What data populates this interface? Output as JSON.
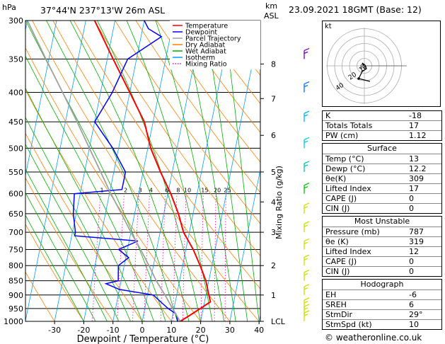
{
  "header": {
    "location": "37°44'N  237°13'W  26m  ASL",
    "datetime": "23.09.2021  18GMT  (Base: 12)",
    "pressure_unit": "hPa",
    "height_unit_km": "km",
    "height_unit_asl": "ASL"
  },
  "legend": [
    {
      "name": "Temperature",
      "color": "#ff0000",
      "style": "solid"
    },
    {
      "name": "Dewpoint",
      "color": "#0000ff",
      "style": "solid"
    },
    {
      "name": "Parcel Trajectory",
      "color": "#a0a0a0",
      "style": "solid"
    },
    {
      "name": "Dry Adiabat",
      "color": "#ff8000",
      "style": "solid"
    },
    {
      "name": "Wet Adiabat",
      "color": "#00b000",
      "style": "solid"
    },
    {
      "name": "Isotherm",
      "color": "#00a0ff",
      "style": "solid"
    },
    {
      "name": "Mixing Ratio",
      "color": "#ff00c0",
      "style": "dotted"
    }
  ],
  "chart_data": {
    "type": "line",
    "xlabel": "Dewpoint / Temperature (°C)",
    "ylabel_right": "Mixing Ratio (g/kg)",
    "xlim": [
      -35,
      40
    ],
    "ylim": [
      1000,
      300
    ],
    "y_scale": "log",
    "pressure_ticks": [
      1000,
      950,
      900,
      850,
      800,
      750,
      700,
      650,
      600,
      550,
      500,
      450,
      400,
      350,
      300
    ],
    "temp_ticks": [
      -30,
      -20,
      -10,
      0,
      10,
      20,
      30,
      40
    ],
    "km_ticks": [
      {
        "km": "LCL",
        "p": 1000
      },
      {
        "km": "1",
        "p": 900
      },
      {
        "km": "2",
        "p": 800
      },
      {
        "km": "3",
        "p": 700
      },
      {
        "km": "4",
        "p": 620
      },
      {
        "km": "5",
        "p": 550
      },
      {
        "km": "6",
        "p": 475
      },
      {
        "km": "7",
        "p": 410
      },
      {
        "km": "8",
        "p": 357
      }
    ],
    "mixing_ratio_labels": [
      "1",
      "2",
      "3",
      "4",
      "6",
      "8",
      "10",
      "15",
      "20",
      "25"
    ],
    "mixing_ratio_values": [
      1,
      2,
      3,
      4,
      6,
      8,
      10,
      15,
      20,
      25
    ],
    "series": [
      {
        "name": "Temperature",
        "color": "#ff0000",
        "points": [
          [
            1000,
            13
          ],
          [
            975,
            16
          ],
          [
            950,
            19
          ],
          [
            925,
            22
          ],
          [
            900,
            21
          ],
          [
            850,
            19
          ],
          [
            800,
            16
          ],
          [
            750,
            12.5
          ],
          [
            700,
            8
          ],
          [
            650,
            5
          ],
          [
            600,
            1
          ],
          [
            550,
            -4
          ],
          [
            500,
            -9
          ],
          [
            450,
            -13
          ],
          [
            400,
            -20
          ],
          [
            350,
            -28
          ],
          [
            300,
            -37
          ]
        ]
      },
      {
        "name": "Dewpoint",
        "color": "#0000ff",
        "points": [
          [
            1000,
            12.2
          ],
          [
            970,
            11
          ],
          [
            950,
            8
          ],
          [
            925,
            5
          ],
          [
            900,
            2
          ],
          [
            880,
            -10
          ],
          [
            860,
            -15
          ],
          [
            850,
            -11
          ],
          [
            800,
            -12
          ],
          [
            775,
            -9
          ],
          [
            750,
            -13
          ],
          [
            725,
            -7
          ],
          [
            710,
            -29
          ],
          [
            700,
            -29
          ],
          [
            650,
            -31
          ],
          [
            600,
            -32
          ],
          [
            590,
            -16
          ],
          [
            550,
            -16
          ],
          [
            500,
            -22
          ],
          [
            450,
            -30
          ],
          [
            400,
            -26
          ],
          [
            350,
            -23
          ],
          [
            320,
            -13
          ],
          [
            310,
            -18
          ],
          [
            300,
            -20
          ]
        ]
      },
      {
        "name": "Parcel Trajectory",
        "color": "#a0a0a0",
        "points": [
          [
            1000,
            13
          ],
          [
            950,
            9.5
          ],
          [
            900,
            6
          ],
          [
            850,
            2
          ],
          [
            800,
            -1.5
          ],
          [
            750,
            -5.5
          ],
          [
            700,
            -10
          ],
          [
            650,
            -14.5
          ],
          [
            600,
            -19.5
          ],
          [
            550,
            -24.5
          ],
          [
            500,
            -30
          ],
          [
            450,
            -36
          ],
          [
            400,
            -43
          ],
          [
            350,
            -51
          ],
          [
            300,
            -60
          ]
        ]
      }
    ],
    "wind_barbs": [
      {
        "p": 1000,
        "color": "#c8e000"
      },
      {
        "p": 975,
        "color": "#c8e000"
      },
      {
        "p": 950,
        "color": "#c8e000"
      },
      {
        "p": 900,
        "color": "#c8e000"
      },
      {
        "p": 850,
        "color": "#c8e000"
      },
      {
        "p": 800,
        "color": "#c8e000"
      },
      {
        "p": 750,
        "color": "#c8e000"
      },
      {
        "p": 700,
        "color": "#c8e000"
      },
      {
        "p": 650,
        "color": "#c8e000"
      },
      {
        "p": 600,
        "color": "#00c000"
      },
      {
        "p": 550,
        "color": "#00c8a0"
      },
      {
        "p": 500,
        "color": "#00c8e0"
      },
      {
        "p": 450,
        "color": "#00b0ff"
      },
      {
        "p": 400,
        "color": "#0070ff"
      },
      {
        "p": 350,
        "color": "#7000c0"
      }
    ]
  },
  "indices": [
    {
      "label": "K",
      "value": "-18"
    },
    {
      "label": "Totals Totals",
      "value": "17"
    },
    {
      "label": "PW (cm)",
      "value": "1.12"
    }
  ],
  "surface": {
    "title": "Surface",
    "rows": [
      {
        "label": "Temp (°C)",
        "value": "13"
      },
      {
        "label": "Dewp (°C)",
        "value": "12.2"
      },
      {
        "label": "θe(K)",
        "value": "309"
      },
      {
        "label": "Lifted Index",
        "value": "17"
      },
      {
        "label": "CAPE (J)",
        "value": "0"
      },
      {
        "label": "CIN (J)",
        "value": "0"
      }
    ]
  },
  "most_unstable": {
    "title": "Most Unstable",
    "rows": [
      {
        "label": "Pressure (mb)",
        "value": "787"
      },
      {
        "label": "θe (K)",
        "value": "319"
      },
      {
        "label": "Lifted Index",
        "value": "12"
      },
      {
        "label": "CAPE (J)",
        "value": "0"
      },
      {
        "label": "CIN (J)",
        "value": "0"
      }
    ]
  },
  "hodograph": {
    "title": "Hodograph",
    "unit_label": "kt",
    "ring_labels": [
      "10",
      "20",
      "40"
    ],
    "rows": [
      {
        "label": "EH",
        "value": "-6"
      },
      {
        "label": "SREH",
        "value": "6"
      },
      {
        "label": "StmDir",
        "value": "29°"
      },
      {
        "label": "StmSpd (kt)",
        "value": "10"
      }
    ]
  },
  "copyright": "© weatheronline.co.uk"
}
